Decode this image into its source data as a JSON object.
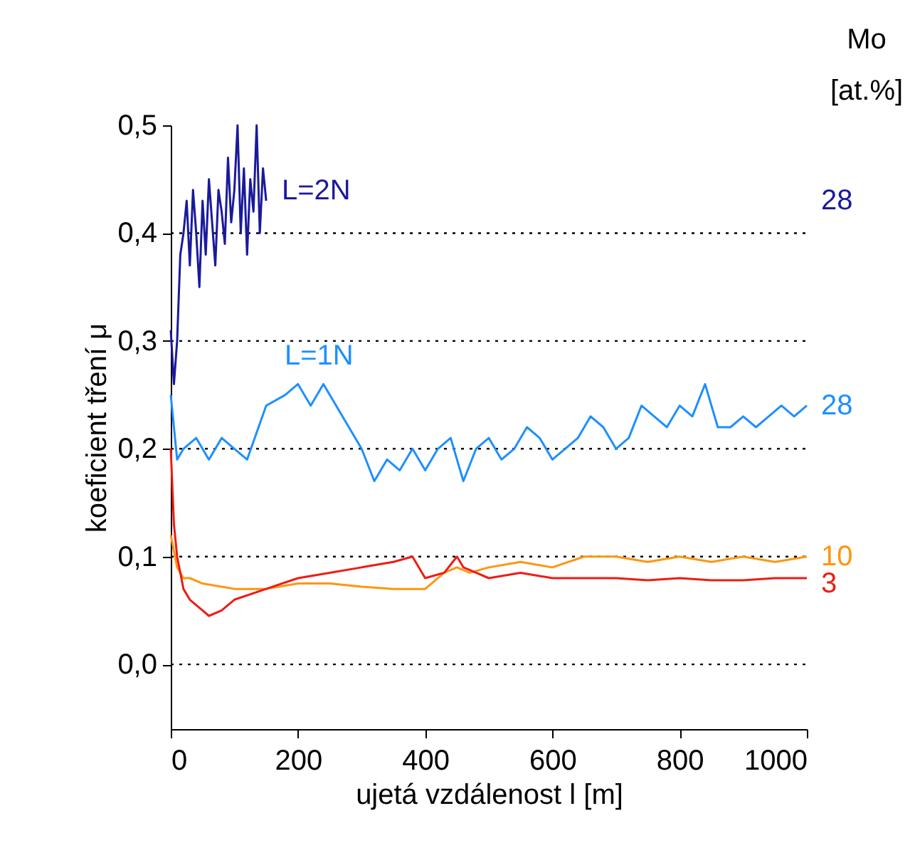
{
  "chart_data": {
    "type": "line",
    "xlabel": "ujetá vzdálenost l [m]",
    "ylabel": "koeficient tření μ",
    "xlim": [
      0,
      1000
    ],
    "ylim": [
      -0.06,
      0.5
    ],
    "xticks": [
      0,
      200,
      400,
      600,
      800,
      1000
    ],
    "yticks": [
      {
        "value": 0,
        "label": "0,0"
      },
      {
        "value": 0.1,
        "label": "0,1"
      },
      {
        "value": 0.2,
        "label": "0,2"
      },
      {
        "value": 0.3,
        "label": "0,3"
      },
      {
        "value": 0.4,
        "label": "0,4"
      },
      {
        "value": 0.5,
        "label": "0,5"
      }
    ],
    "grid": "y",
    "line_style": "solid",
    "series": [
      {
        "name": "28",
        "color": "#1a1a9c",
        "x": [
          0,
          5,
          10,
          15,
          20,
          25,
          30,
          35,
          40,
          45,
          50,
          55,
          60,
          65,
          70,
          75,
          80,
          85,
          90,
          95,
          100,
          105,
          110,
          115,
          120,
          125,
          130,
          135,
          140,
          145,
          150
        ],
        "values": [
          0.31,
          0.26,
          0.3,
          0.38,
          0.4,
          0.43,
          0.37,
          0.44,
          0.4,
          0.35,
          0.43,
          0.38,
          0.45,
          0.41,
          0.37,
          0.44,
          0.42,
          0.39,
          0.47,
          0.41,
          0.44,
          0.5,
          0.4,
          0.46,
          0.38,
          0.45,
          0.42,
          0.5,
          0.4,
          0.46,
          0.43
        ]
      },
      {
        "name": "28",
        "color": "#1e8fff",
        "x": [
          0,
          10,
          20,
          40,
          60,
          80,
          100,
          120,
          150,
          180,
          200,
          220,
          240,
          260,
          280,
          300,
          320,
          340,
          360,
          380,
          400,
          420,
          440,
          460,
          480,
          500,
          520,
          540,
          560,
          580,
          600,
          620,
          640,
          660,
          680,
          700,
          720,
          740,
          760,
          780,
          800,
          820,
          840,
          860,
          880,
          900,
          920,
          940,
          960,
          980,
          1000
        ],
        "values": [
          0.25,
          0.19,
          0.2,
          0.21,
          0.19,
          0.21,
          0.2,
          0.19,
          0.24,
          0.25,
          0.26,
          0.24,
          0.26,
          0.24,
          0.22,
          0.2,
          0.17,
          0.19,
          0.18,
          0.2,
          0.18,
          0.2,
          0.21,
          0.17,
          0.2,
          0.21,
          0.19,
          0.2,
          0.22,
          0.21,
          0.19,
          0.2,
          0.21,
          0.23,
          0.22,
          0.2,
          0.21,
          0.24,
          0.23,
          0.22,
          0.24,
          0.23,
          0.26,
          0.22,
          0.22,
          0.23,
          0.22,
          0.23,
          0.24,
          0.23,
          0.24
        ]
      },
      {
        "name": "10",
        "color": "#ff9510",
        "x": [
          0,
          10,
          20,
          30,
          50,
          100,
          150,
          200,
          250,
          300,
          350,
          400,
          430,
          450,
          470,
          500,
          550,
          600,
          650,
          700,
          750,
          800,
          850,
          900,
          950,
          1000
        ],
        "values": [
          0.12,
          0.09,
          0.08,
          0.08,
          0.075,
          0.07,
          0.07,
          0.075,
          0.075,
          0.072,
          0.07,
          0.07,
          0.085,
          0.09,
          0.085,
          0.09,
          0.095,
          0.09,
          0.1,
          0.1,
          0.095,
          0.1,
          0.095,
          0.1,
          0.095,
          0.1
        ]
      },
      {
        "name": "3",
        "color": "#ee1c14",
        "x": [
          0,
          5,
          10,
          20,
          30,
          40,
          50,
          60,
          80,
          100,
          150,
          200,
          250,
          300,
          350,
          380,
          400,
          430,
          450,
          460,
          480,
          500,
          550,
          600,
          650,
          700,
          750,
          800,
          850,
          900,
          950,
          1000
        ],
        "values": [
          0.2,
          0.13,
          0.1,
          0.07,
          0.06,
          0.055,
          0.05,
          0.045,
          0.05,
          0.06,
          0.07,
          0.08,
          0.085,
          0.09,
          0.095,
          0.1,
          0.08,
          0.085,
          0.1,
          0.09,
          0.085,
          0.08,
          0.085,
          0.08,
          0.08,
          0.08,
          0.078,
          0.08,
          0.078,
          0.078,
          0.08,
          0.08
        ]
      }
    ],
    "annotations": [
      "Mo",
      "[at.%]",
      "L=2N",
      "L=1N"
    ]
  }
}
